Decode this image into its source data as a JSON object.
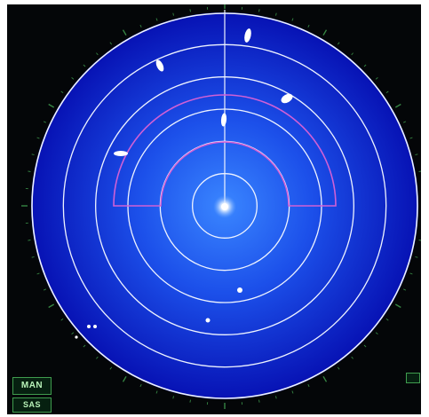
{
  "display": {
    "mode_label": "MAN",
    "aux_label": "SAS"
  },
  "radar": {
    "range_ring_count": 6,
    "colors": {
      "background": "#040608",
      "scope_center": "#2c74ff",
      "scope_edge": "#0712b4",
      "rings": "#eef3ff",
      "guard_zone": "#d060d6",
      "echo": "#ffffff",
      "bezel_marks": "#3f9c4e",
      "labels": "#b8f2b8"
    },
    "icons": [
      "ship-icon",
      "heading-line-icon",
      "range-ring-icon",
      "guard-zone-icon"
    ]
  }
}
